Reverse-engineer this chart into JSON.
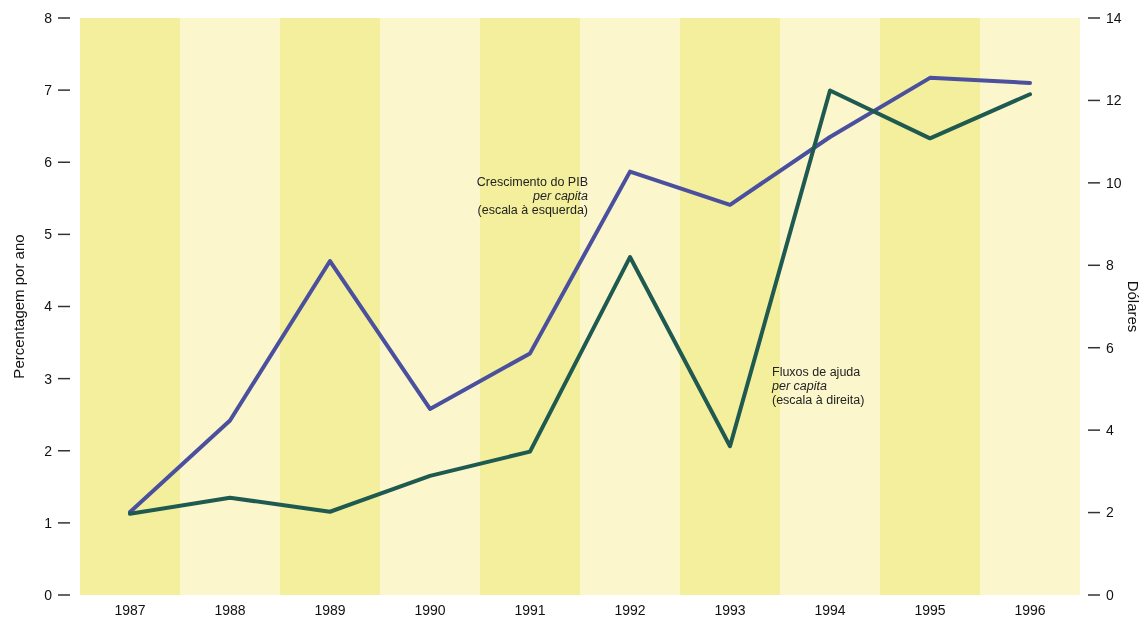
{
  "chart_data": {
    "type": "line",
    "categories": [
      "1987",
      "1988",
      "1989",
      "1990",
      "1991",
      "1992",
      "1993",
      "1994",
      "1995",
      "1996"
    ],
    "series": [
      {
        "name": "Crescimento do PIB\nper capita\n(escala à esquerda)",
        "color": "#4a4f9e",
        "axis": "y",
        "values": [
          1.15,
          2.42,
          4.63,
          2.58,
          3.35,
          5.87,
          5.41,
          6.35,
          7.17,
          7.1
        ]
      },
      {
        "name": "Fluxos de ajuda\nper capita\n(escala à direita)",
        "color": "#1f5a50",
        "axis": "y2",
        "values": [
          1.97,
          2.36,
          2.02,
          2.89,
          3.48,
          8.2,
          3.61,
          12.24,
          11.08,
          12.15
        ]
      }
    ],
    "ylim": [
      0,
      8
    ],
    "yticks": [
      0,
      1,
      2,
      3,
      4,
      5,
      6,
      7,
      8
    ],
    "y2lim": [
      0,
      14
    ],
    "y2ticks": [
      0,
      2,
      4,
      6,
      8,
      10,
      12,
      14
    ],
    "bands": [
      {
        "axis": "x",
        "from": "1987",
        "to": "1987",
        "color": "#f4ef9c"
      },
      {
        "axis": "x",
        "from": "1988",
        "to": "1988",
        "color": "#fbf6cb"
      },
      {
        "axis": "x",
        "from": "1989",
        "to": "1989",
        "color": "#f4ef9c"
      },
      {
        "axis": "x",
        "from": "1990",
        "to": "1990",
        "color": "#fbf6cb"
      },
      {
        "axis": "x",
        "from": "1991",
        "to": "1991",
        "color": "#f4ef9c"
      },
      {
        "axis": "x",
        "from": "1992",
        "to": "1992",
        "color": "#fbf6cb"
      },
      {
        "axis": "x",
        "from": "1993",
        "to": "1993",
        "color": "#f4ef9c"
      },
      {
        "axis": "x",
        "from": "1994",
        "to": "1994",
        "color": "#fbf6cb"
      },
      {
        "axis": "x",
        "from": "1995",
        "to": "1995",
        "color": "#f4ef9c"
      },
      {
        "axis": "x",
        "from": "1996",
        "to": "1996",
        "color": "#fbf6cb"
      }
    ],
    "ylabel": "Percentagem por ano",
    "y2label": "Dólares",
    "grid": false
  }
}
